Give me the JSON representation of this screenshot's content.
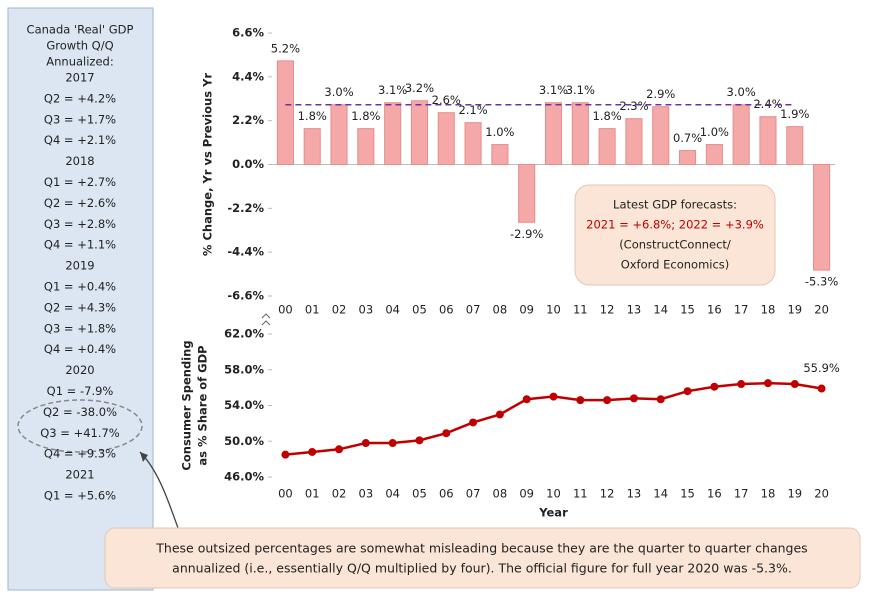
{
  "sidebar": {
    "title": [
      "Canada 'Real' GDP",
      "Growth Q/Q",
      "Annualized:"
    ],
    "items": [
      "2017",
      "Q2 = +4.2%",
      "Q3 = +1.7%",
      "Q4 = +2.1%",
      "2018",
      "Q1 = +2.7%",
      "Q2 = +2.6%",
      "Q3 = +2.8%",
      "Q4 = +1.1%",
      "2019",
      "Q1 = +0.4%",
      "Q2 = +4.3%",
      "Q3 = +1.8%",
      "Q4 = +0.4%",
      "2020",
      "Q1 = -7.9%",
      "Q2 = -38.0%",
      "Q3 = +41.7%",
      "Q4 = +9.3%",
      "2021",
      "Q1 = +5.6%"
    ]
  },
  "forecast_box": [
    "Latest GDP forecasts:",
    "2021 = +6.8%; 2022 = +3.9%",
    "(ConstructConnect/",
    "Oxford Economics)"
  ],
  "note": [
    "These outsized percentages are somewhat misleading because they are the quarter to quarter changes",
    "annualized (i.e., essentially Q/Q multiplied by four). The official figure for full year 2020 was -5.3%."
  ],
  "chart_data": [
    {
      "type": "bar",
      "y_label": [
        "% Change, Yr vs Previous Yr"
      ],
      "categories": [
        "00",
        "01",
        "02",
        "03",
        "04",
        "05",
        "06",
        "07",
        "08",
        "09",
        "10",
        "11",
        "12",
        "13",
        "14",
        "15",
        "16",
        "17",
        "18",
        "19",
        "20"
      ],
      "values": [
        5.2,
        1.8,
        3.0,
        1.8,
        3.1,
        3.2,
        2.6,
        2.1,
        1.0,
        -2.9,
        3.1,
        3.1,
        1.8,
        2.3,
        2.9,
        0.7,
        1.0,
        3.0,
        2.4,
        1.9,
        -5.3
      ],
      "value_labels": [
        "5.2%",
        "1.8%",
        "3.0%",
        "1.8%",
        "3.1%",
        "3.2%",
        "2.6%",
        "2.1%",
        "1.0%",
        "-2.9%",
        "3.1%",
        "3.1%",
        "1.8%",
        "2.3%",
        "2.9%",
        "0.7%",
        "1.0%",
        "3.0%",
        "2.4%",
        "1.9%",
        "-5.3%"
      ],
      "color": "#f4a9a8",
      "reference_line": {
        "value": 3.0,
        "color": "#7030a0"
      },
      "ylim": [
        -6.6,
        6.6
      ],
      "yticks": [
        {
          "value": 6.6,
          "label": "6.6%"
        },
        {
          "value": 4.4,
          "label": "4.4%"
        },
        {
          "value": 2.2,
          "label": "2.2%"
        },
        {
          "value": 0,
          "label": "0.0%"
        },
        {
          "value": -2.2,
          "label": "-2.2%"
        },
        {
          "value": -4.4,
          "label": "-4.4%"
        },
        {
          "value": -6.6,
          "label": "-6.6%"
        }
      ]
    },
    {
      "type": "line",
      "y_label": [
        "Consumer Spending",
        "as % Share of GDP"
      ],
      "x_label": "Year",
      "categories": [
        "00",
        "01",
        "02",
        "03",
        "04",
        "05",
        "06",
        "07",
        "08",
        "09",
        "10",
        "11",
        "12",
        "13",
        "14",
        "15",
        "16",
        "17",
        "18",
        "19",
        "20"
      ],
      "values": [
        48.5,
        48.8,
        49.1,
        49.8,
        49.8,
        50.1,
        50.9,
        52.1,
        53.0,
        54.7,
        55.0,
        54.6,
        54.6,
        54.8,
        54.7,
        55.6,
        56.1,
        56.4,
        56.5,
        56.4,
        55.9
      ],
      "value_labels": [
        null,
        null,
        null,
        null,
        null,
        null,
        null,
        null,
        null,
        null,
        null,
        null,
        null,
        null,
        null,
        null,
        null,
        null,
        null,
        null,
        "55.9%"
      ],
      "color": "#c00000",
      "ylim": [
        46,
        62
      ],
      "yticks": [
        {
          "value": 46,
          "label": "46.0%"
        },
        {
          "value": 50,
          "label": "50.0%"
        },
        {
          "value": 54,
          "label": "54.0%"
        },
        {
          "value": 58,
          "label": "58.0%"
        },
        {
          "value": 62,
          "label": "62.0%"
        }
      ]
    }
  ]
}
